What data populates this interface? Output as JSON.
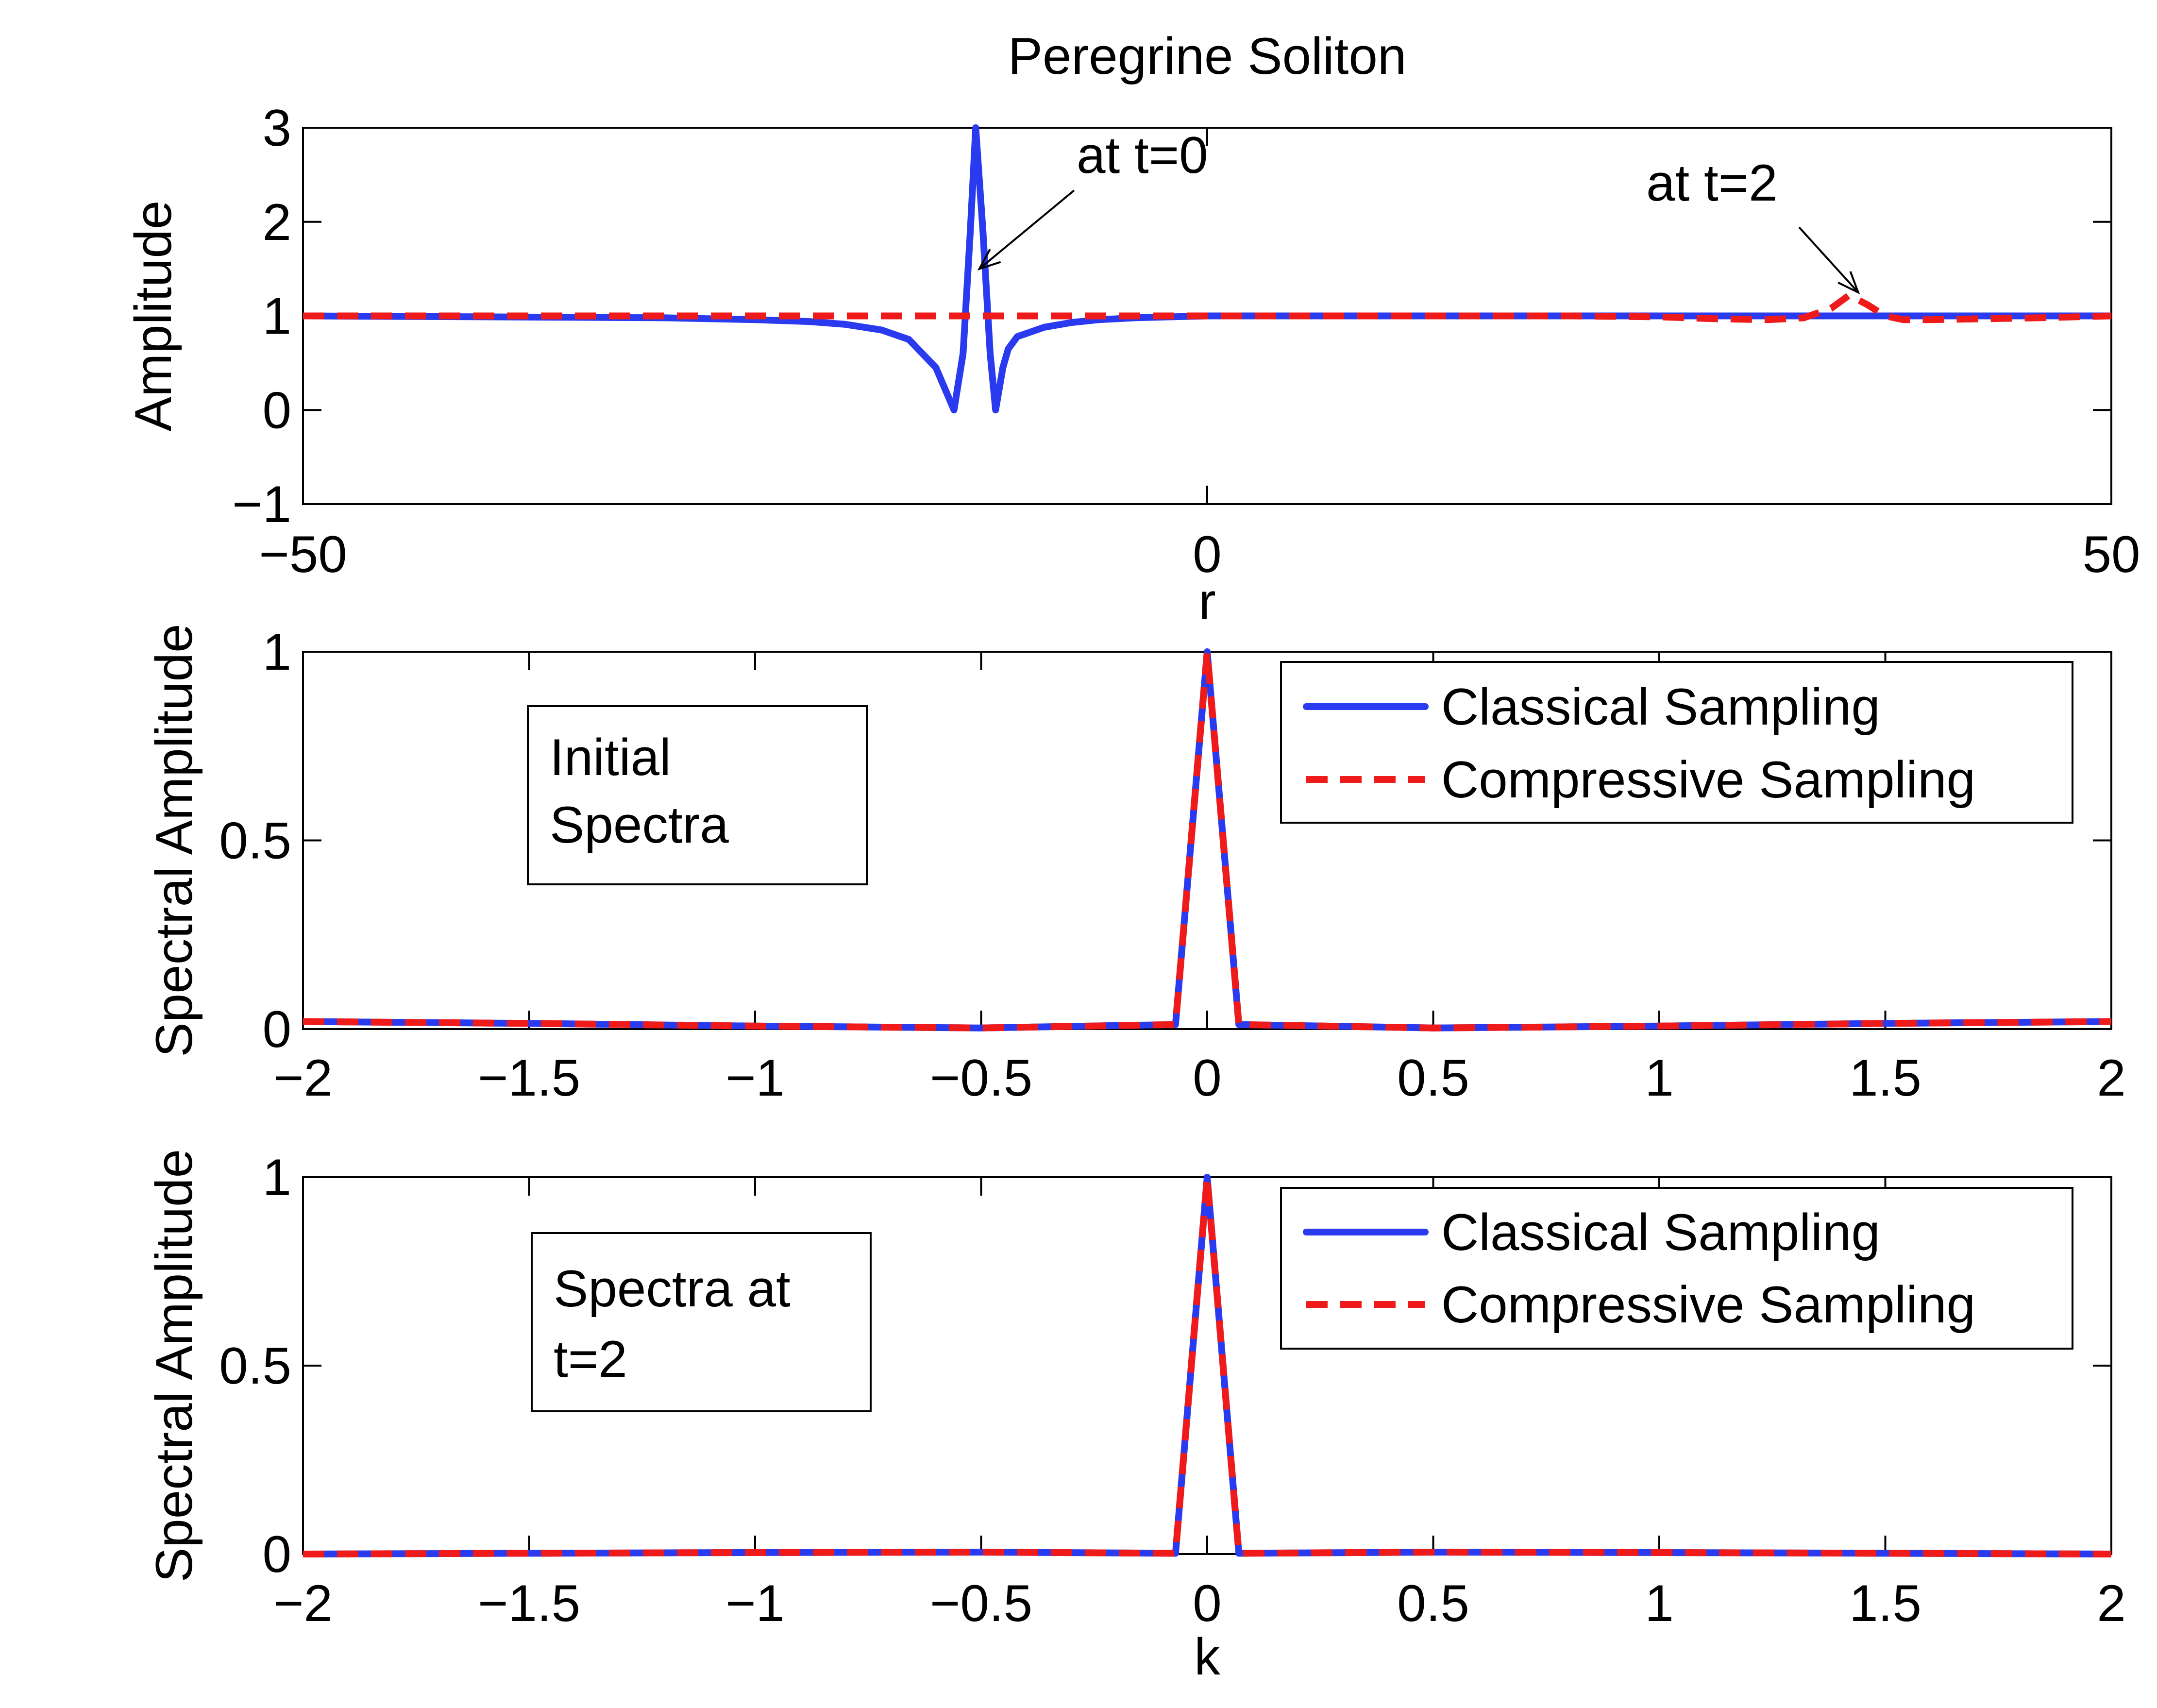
{
  "figure_title": "Peregrine Soliton",
  "colors": {
    "classical": "#2a3bef",
    "compressive": "#ef1b1b"
  },
  "chart_data": [
    {
      "type": "line",
      "title": "Peregrine Soliton",
      "xlabel": "r",
      "ylabel": "Amplitude",
      "xlim": [
        -50,
        50
      ],
      "ylim": [
        -1,
        3
      ],
      "xticks": [
        -50,
        0,
        50
      ],
      "xtick_labels": [
        "−50",
        "0",
        "50"
      ],
      "yticks": [
        -1,
        0,
        1,
        2,
        3
      ],
      "ytick_labels": [
        "−1",
        "0",
        "1",
        "2",
        "3"
      ],
      "grid": false,
      "series": [
        {
          "name": "at t=0",
          "style": "solid",
          "x": [
            -50,
            -40,
            -30,
            -25,
            -22,
            -20,
            -18,
            -16.5,
            -15,
            -14,
            -13.5,
            -13.1,
            -12.8,
            -12.4,
            -12,
            -11.7,
            -11.3,
            -11,
            -10.5,
            -9,
            -7.5,
            -6,
            -4,
            -2,
            0,
            5,
            10,
            20,
            30,
            40,
            50
          ],
          "y": [
            1,
            0.99,
            0.98,
            0.96,
            0.94,
            0.91,
            0.85,
            0.75,
            0.45,
            0.0,
            0.6,
            1.9,
            3.0,
            1.9,
            0.6,
            0.0,
            0.45,
            0.65,
            0.78,
            0.88,
            0.93,
            0.96,
            0.98,
            0.99,
            1.0,
            1.0,
            1.0,
            1.0,
            1.0,
            1.0,
            1.0
          ]
        },
        {
          "name": "at t=2",
          "style": "dashed",
          "x": [
            -50,
            -30,
            -10,
            0,
            10,
            20,
            25,
            28,
            31,
            33,
            34.5,
            35.5,
            36.5,
            37.5,
            38.5,
            40,
            43,
            46,
            50
          ],
          "y": [
            1,
            1,
            1,
            1,
            1,
            1,
            0.99,
            0.97,
            0.96,
            0.98,
            1.08,
            1.22,
            1.12,
            1.0,
            0.96,
            0.96,
            0.97,
            0.98,
            1.0
          ]
        }
      ],
      "annotations": [
        {
          "text": "at t=0",
          "target": [
            -12.6,
            1.5
          ]
        },
        {
          "text": "at t=2",
          "target": [
            36.0,
            1.25
          ]
        }
      ]
    },
    {
      "type": "line",
      "xlabel": "",
      "ylabel": "Spectral Amplitude",
      "xlim": [
        -2,
        2
      ],
      "ylim": [
        0,
        1
      ],
      "xticks": [
        -2,
        -1.5,
        -1,
        -0.5,
        0,
        0.5,
        1,
        1.5,
        2
      ],
      "xtick_labels": [
        "−2",
        "−1.5",
        "−1",
        "−0.5",
        "0",
        "0.5",
        "1",
        "1.5",
        "2"
      ],
      "yticks": [
        0,
        0.5,
        1
      ],
      "ytick_labels": [
        "0",
        "0.5",
        "1"
      ],
      "grid": false,
      "text_box": [
        "Initial",
        "Spectra"
      ],
      "legend": [
        "Classical Sampling",
        "Compressive Sampling"
      ],
      "legend_position": "top-right",
      "series": [
        {
          "name": "Classical Sampling",
          "style": "solid",
          "x": [
            -2,
            -1.5,
            -1,
            -0.5,
            -0.07,
            0,
            0.07,
            0.5,
            1,
            1.5,
            2
          ],
          "y": [
            0.02,
            0.015,
            0.008,
            0.003,
            0.012,
            1.0,
            0.012,
            0.003,
            0.008,
            0.015,
            0.02
          ]
        },
        {
          "name": "Compressive Sampling",
          "style": "dashed",
          "x": [
            -2,
            -1.5,
            -1,
            -0.5,
            -0.07,
            0,
            0.07,
            0.5,
            1,
            1.5,
            2
          ],
          "y": [
            0.02,
            0.015,
            0.008,
            0.003,
            0.012,
            1.0,
            0.012,
            0.003,
            0.008,
            0.015,
            0.02
          ]
        }
      ]
    },
    {
      "type": "line",
      "xlabel": "k",
      "ylabel": "Spectral Amplitude",
      "xlim": [
        -2,
        2
      ],
      "ylim": [
        0,
        1
      ],
      "xticks": [
        -2,
        -1.5,
        -1,
        -0.5,
        0,
        0.5,
        1,
        1.5,
        2
      ],
      "xtick_labels": [
        "−2",
        "−1.5",
        "−1",
        "−0.5",
        "0",
        "0.5",
        "1",
        "1.5",
        "2"
      ],
      "yticks": [
        0,
        0.5,
        1
      ],
      "ytick_labels": [
        "0",
        "0.5",
        "1"
      ],
      "grid": false,
      "text_box": [
        "Spectra at",
        "t=2"
      ],
      "legend": [
        "Classical Sampling",
        "Compressive Sampling"
      ],
      "legend_position": "top-right",
      "series": [
        {
          "name": "Classical Sampling",
          "style": "solid",
          "x": [
            -2,
            -1.5,
            -1,
            -0.5,
            -0.07,
            0,
            0.07,
            0.5,
            1,
            1.5,
            2
          ],
          "y": [
            0.0,
            0.002,
            0.004,
            0.005,
            0.002,
            1.0,
            0.002,
            0.005,
            0.004,
            0.002,
            0.0
          ]
        },
        {
          "name": "Compressive Sampling",
          "style": "dashed",
          "x": [
            -2,
            -1.5,
            -1,
            -0.5,
            -0.07,
            0,
            0.07,
            0.5,
            1,
            1.5,
            2
          ],
          "y": [
            0.0,
            0.002,
            0.004,
            0.005,
            0.002,
            1.0,
            0.002,
            0.005,
            0.004,
            0.002,
            0.0
          ]
        }
      ]
    }
  ]
}
